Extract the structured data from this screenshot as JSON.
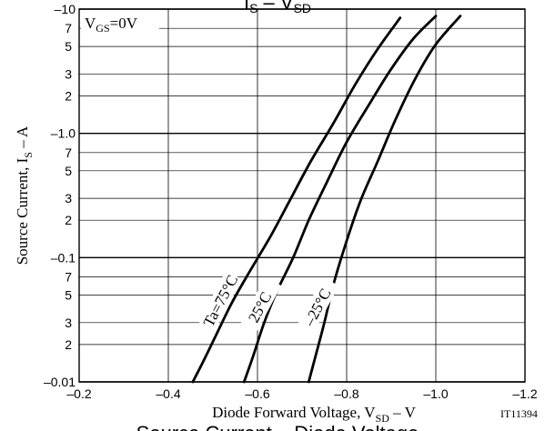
{
  "chart_data": {
    "type": "line",
    "title_fragment": "I",
    "title_fragment_sub": "S",
    "title_fragment_mid": " – V",
    "title_fragment_sub2": "SD",
    "bottom_fragment": "Source Current – Diode Voltage",
    "condition_main": "V",
    "condition_sub": "GS",
    "condition_tail": "=0V",
    "xlabel_main": "Diode Forward Voltage, V",
    "xlabel_sub": "SD",
    "xlabel_tail": " – V",
    "ylabel_main": "Source Current, I",
    "ylabel_sub": "S",
    "ylabel_tail": " – A",
    "figure_code": "IT11394",
    "x_axis": {
      "min": -0.2,
      "max": -1.2,
      "major_ticks": [
        -0.2,
        -0.4,
        -0.6,
        -0.8,
        -1.0,
        -1.2
      ],
      "tick_labels": [
        "–0.2",
        "–0.4",
        "–0.6",
        "–0.8",
        "–1.0",
        "–1.2"
      ]
    },
    "y_axis": {
      "scale": "log",
      "min": -0.01,
      "max": -10,
      "decades": [
        {
          "value": -0.01,
          "label": "–0.01"
        },
        {
          "value": -0.1,
          "label": "–0.1"
        },
        {
          "value": -1.0,
          "label": "–1.0"
        },
        {
          "value": -10,
          "label": "–10"
        }
      ],
      "minor_ticks": [
        {
          "value": -0.02,
          "label": "2"
        },
        {
          "value": -0.03,
          "label": "3"
        },
        {
          "value": -0.05,
          "label": "5"
        },
        {
          "value": -0.07,
          "label": "7"
        },
        {
          "value": -0.2,
          "label": "2"
        },
        {
          "value": -0.3,
          "label": "3"
        },
        {
          "value": -0.5,
          "label": "5"
        },
        {
          "value": -0.7,
          "label": "7"
        },
        {
          "value": -2,
          "label": "2"
        },
        {
          "value": -3,
          "label": "3"
        },
        {
          "value": -5,
          "label": "5"
        },
        {
          "value": -7,
          "label": "7"
        }
      ]
    },
    "series": [
      {
        "name": "Ta=75°C",
        "x": [
          -0.455,
          -0.48,
          -0.51,
          -0.545,
          -0.585,
          -0.63,
          -0.675,
          -0.72,
          -0.77,
          -0.82,
          -0.87,
          -0.92
        ],
        "y": [
          -0.01,
          -0.015,
          -0.025,
          -0.045,
          -0.08,
          -0.15,
          -0.3,
          -0.6,
          -1.2,
          -2.5,
          -4.8,
          -8.5
        ]
      },
      {
        "name": "25°C",
        "x": [
          -0.57,
          -0.59,
          -0.615,
          -0.645,
          -0.68,
          -0.715,
          -0.755,
          -0.8,
          -0.85,
          -0.9,
          -0.95,
          -1.0
        ],
        "y": [
          -0.01,
          -0.016,
          -0.03,
          -0.055,
          -0.1,
          -0.2,
          -0.4,
          -0.85,
          -1.7,
          -3.3,
          -5.8,
          -8.8
        ]
      },
      {
        "name": "–25°C",
        "x": [
          -0.715,
          -0.73,
          -0.75,
          -0.77,
          -0.795,
          -0.83,
          -0.87,
          -0.91,
          -0.955,
          -1.0,
          -1.055
        ],
        "y": [
          -0.01,
          -0.016,
          -0.03,
          -0.06,
          -0.12,
          -0.28,
          -0.6,
          -1.3,
          -2.8,
          -5.2,
          -8.8
        ]
      }
    ],
    "annotations": [
      {
        "text": "Ta=75°C",
        "series": 0
      },
      {
        "text": "25°C",
        "series": 1
      },
      {
        "text": "–25°C",
        "series": 2
      }
    ],
    "grid": true,
    "line_color": "#000000"
  }
}
